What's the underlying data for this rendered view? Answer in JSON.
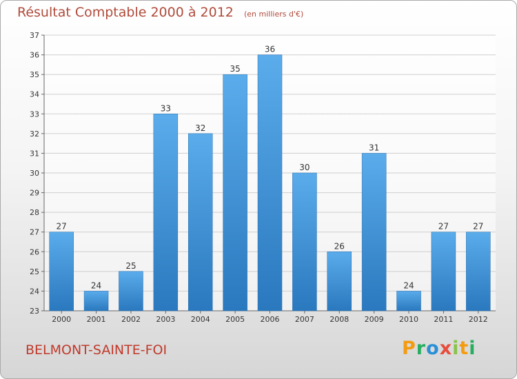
{
  "chart_data": {
    "type": "bar",
    "title": "Résultat Comptable 2000 à 2012",
    "subtitle": "(en milliers d'€)",
    "categories": [
      "2000",
      "2001",
      "2002",
      "2003",
      "2004",
      "2005",
      "2006",
      "2007",
      "2008",
      "2009",
      "2010",
      "2011",
      "2012"
    ],
    "values": [
      27,
      24,
      25,
      33,
      32,
      35,
      36,
      30,
      26,
      31,
      24,
      27,
      27
    ],
    "ylim": [
      23,
      37
    ],
    "yticks": [
      23,
      24,
      25,
      26,
      27,
      28,
      29,
      30,
      31,
      32,
      33,
      34,
      35,
      36,
      37
    ],
    "grid": true,
    "bar_color": "#3d8fd6",
    "xlabel": "",
    "ylabel": ""
  },
  "footer": {
    "place": "BELMONT-SAINTE-FOI",
    "logo_letters": [
      "P",
      "r",
      "o",
      "x",
      "i",
      "t",
      "i"
    ],
    "logo_colors": [
      "#f39c12",
      "#27ae60",
      "#2b8fd6",
      "#e74c3c",
      "#8bc34a",
      "#f39c12",
      "#27ae60"
    ]
  }
}
